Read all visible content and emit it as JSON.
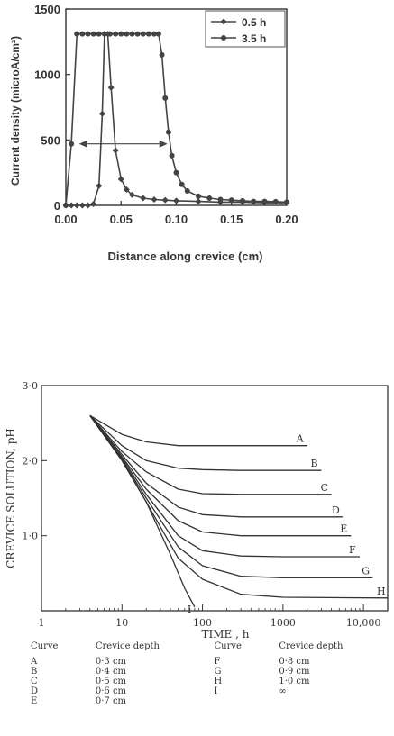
{
  "chart_data": [
    {
      "type": "line",
      "xlabel": "Distance along crevice (cm)",
      "ylabel": "Current density (microA/cm²)",
      "xlim": [
        0,
        0.2
      ],
      "ylim": [
        0,
        1500
      ],
      "x_ticks": [
        "0.00",
        "0.05",
        "0.10",
        "0.15",
        "0.20"
      ],
      "y_ticks": [
        "0",
        "500",
        "1000",
        "1500"
      ],
      "legend_position": "top-right",
      "series": [
        {
          "name": "0.5 h",
          "marker": "diamond",
          "x": [
            0.0,
            0.005,
            0.01,
            0.015,
            0.02,
            0.025,
            0.03,
            0.033,
            0.035,
            0.038,
            0.041,
            0.045,
            0.05,
            0.055,
            0.06,
            0.07,
            0.08,
            0.09,
            0.1,
            0.12,
            0.14,
            0.16,
            0.18,
            0.2
          ],
          "values": [
            0,
            0,
            0,
            0,
            0,
            10,
            150,
            700,
            1310,
            1310,
            900,
            420,
            200,
            120,
            80,
            55,
            45,
            40,
            35,
            30,
            25,
            25,
            20,
            20
          ]
        },
        {
          "name": "3.5 h",
          "marker": "circle",
          "x": [
            0.0,
            0.005,
            0.01,
            0.015,
            0.02,
            0.025,
            0.03,
            0.035,
            0.04,
            0.045,
            0.05,
            0.055,
            0.06,
            0.065,
            0.07,
            0.075,
            0.08,
            0.084,
            0.087,
            0.09,
            0.093,
            0.096,
            0.1,
            0.105,
            0.11,
            0.12,
            0.13,
            0.14,
            0.15,
            0.16,
            0.17,
            0.18,
            0.19,
            0.2
          ],
          "values": [
            0,
            470,
            1310,
            1310,
            1310,
            1310,
            1310,
            1310,
            1310,
            1310,
            1310,
            1310,
            1310,
            1310,
            1310,
            1310,
            1310,
            1310,
            1150,
            820,
            560,
            380,
            250,
            160,
            110,
            70,
            55,
            45,
            40,
            35,
            30,
            30,
            28,
            25
          ]
        }
      ],
      "annotations": [
        "double-headed arrow between the two curves at about 470 microA/cm²"
      ]
    },
    {
      "type": "line",
      "xlabel": "TIME , h",
      "ylabel": "CREVICE SOLUTION, pH",
      "x_scale": "log",
      "xlim": [
        1,
        20000
      ],
      "ylim": [
        0,
        3
      ],
      "x_ticks": [
        "1",
        "10",
        "100",
        "1000",
        "10,000"
      ],
      "y_ticks": [
        "3·0",
        "2·0",
        "1·0"
      ],
      "series": [
        {
          "name": "A",
          "x": [
            4,
            10,
            20,
            50,
            100,
            300,
            1000,
            2000
          ],
          "values": [
            2.6,
            2.35,
            2.25,
            2.2,
            2.2,
            2.2,
            2.2,
            2.2
          ]
        },
        {
          "name": "B",
          "x": [
            4,
            10,
            20,
            50,
            100,
            300,
            1000,
            3000
          ],
          "values": [
            2.6,
            2.2,
            2.0,
            1.9,
            1.88,
            1.87,
            1.87,
            1.87
          ]
        },
        {
          "name": "C",
          "x": [
            4,
            10,
            20,
            50,
            100,
            300,
            1000,
            4000
          ],
          "values": [
            2.6,
            2.12,
            1.85,
            1.62,
            1.56,
            1.55,
            1.55,
            1.55
          ]
        },
        {
          "name": "D",
          "x": [
            4,
            10,
            20,
            50,
            100,
            300,
            1000,
            5500
          ],
          "values": [
            2.6,
            2.08,
            1.7,
            1.38,
            1.28,
            1.25,
            1.25,
            1.25
          ]
        },
        {
          "name": "E",
          "x": [
            4,
            10,
            20,
            50,
            100,
            300,
            1000,
            7000
          ],
          "values": [
            2.6,
            2.05,
            1.62,
            1.2,
            1.05,
            1.0,
            1.0,
            1.0
          ]
        },
        {
          "name": "F",
          "x": [
            4,
            10,
            20,
            50,
            100,
            300,
            1000,
            9000
          ],
          "values": [
            2.6,
            2.03,
            1.55,
            1.0,
            0.8,
            0.73,
            0.72,
            0.72
          ]
        },
        {
          "name": "G",
          "x": [
            4,
            10,
            20,
            50,
            100,
            300,
            1000,
            13000
          ],
          "values": [
            2.6,
            2.01,
            1.5,
            0.85,
            0.6,
            0.46,
            0.44,
            0.44
          ]
        },
        {
          "name": "H",
          "x": [
            4,
            10,
            20,
            50,
            100,
            300,
            1000,
            20000
          ],
          "values": [
            2.6,
            2.0,
            1.45,
            0.7,
            0.42,
            0.22,
            0.18,
            0.17
          ]
        },
        {
          "name": "I",
          "x": [
            4,
            10,
            20,
            40,
            60,
            80
          ],
          "values": [
            2.6,
            2.0,
            1.45,
            0.75,
            0.3,
            0.05
          ]
        }
      ]
    }
  ],
  "legend_table": {
    "headers": [
      "Curve",
      "Crevice depth",
      "Curve",
      "Crevice depth"
    ],
    "rows": [
      [
        "A",
        "0·3 cm",
        "F",
        "0·8 cm"
      ],
      [
        "B",
        "0·4 cm",
        "G",
        "0·9 cm"
      ],
      [
        "C",
        "0·5 cm",
        "H",
        "1·0 cm"
      ],
      [
        "D",
        "0·6 cm",
        "I",
        "∞"
      ],
      [
        "E",
        "0·7 cm",
        "",
        ""
      ]
    ]
  }
}
